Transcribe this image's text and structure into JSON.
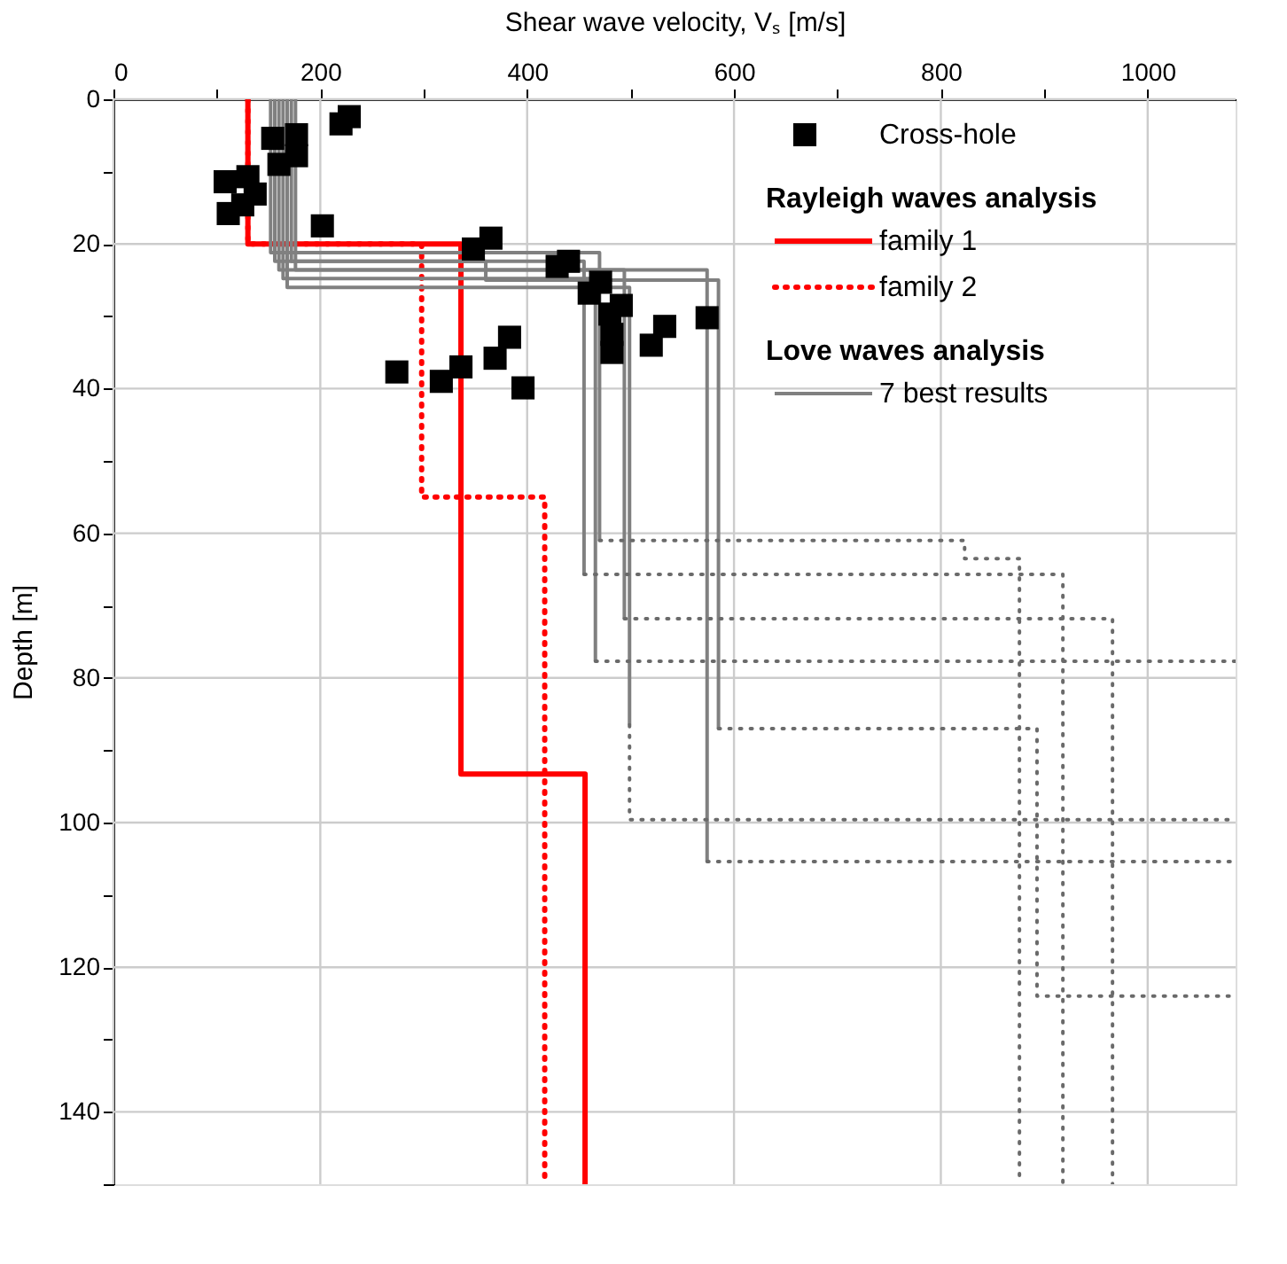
{
  "chart_data": {
    "type": "line",
    "xlabel": "Shear wave velocity, Vₛ [m/s]",
    "ylabel": "Depth [m]",
    "xlim": [
      0,
      1085
    ],
    "ylim": [
      150,
      0
    ],
    "xticks": [
      0,
      {
        "value": 100,
        "label": null
      },
      200,
      {
        "value": 300,
        "label": null
      },
      400,
      {
        "value": 500,
        "label": null
      },
      600,
      {
        "value": 700,
        "label": null
      },
      800,
      {
        "value": 900,
        "label": null
      },
      1000
    ],
    "yticks": [
      0,
      {
        "value": 10,
        "label": null
      },
      20,
      {
        "value": 30,
        "label": null
      },
      40,
      {
        "value": 50,
        "label": null
      },
      60,
      {
        "value": 70,
        "label": null
      },
      80,
      {
        "value": 90,
        "label": null
      },
      100,
      {
        "value": 110,
        "label": null
      },
      120,
      {
        "value": 130,
        "label": null
      },
      140,
      {
        "value": 150,
        "label": null
      }
    ],
    "grid": true,
    "legend": "top right",
    "annotations": [
      "Rayleigh waves analysis",
      "Love waves analysis"
    ],
    "series": [
      {
        "name": "Cross-hole",
        "type": "scatter",
        "marker": "square",
        "color": "#000000",
        "x": [
          228,
          220,
          154,
          177,
          177,
          160,
          108,
          130,
          137,
          111,
          125,
          202,
          348,
          365,
          429,
          440,
          460,
          471,
          491,
          480,
          482,
          482,
          520,
          533,
          574,
          274,
          317,
          336,
          369,
          383,
          396
        ],
        "values": [
          2.4,
          3.4,
          5.4,
          4.9,
          7.8,
          9,
          11.4,
          10.7,
          13.1,
          15.8,
          14.6,
          17.5,
          20.7,
          19.2,
          23.1,
          22.4,
          26.8,
          25.3,
          28.5,
          29.7,
          32.5,
          35,
          34,
          31.4,
          30.2,
          37.7,
          39,
          37,
          35.8,
          32.9,
          39.9
        ]
      },
      {
        "name": "family 1",
        "line_style": "solid",
        "color": "#ff0000",
        "x": [
          130,
          130,
          336,
          336,
          456,
          456
        ],
        "values": [
          0,
          20,
          20,
          93.3,
          93.3,
          150
        ]
      },
      {
        "name": "family 2",
        "line_style": "dotted",
        "color": "#ff0000",
        "x": [
          130,
          130,
          298,
          298,
          417,
          417
        ],
        "values": [
          0,
          20,
          20,
          55,
          55,
          150
        ]
      },
      {
        "name": "7 best results",
        "line_style": "solid",
        "color": "#808080",
        "x": [
          152,
          152,
          470,
          470
        ],
        "values": [
          0,
          21.2,
          21.2,
          61
        ]
      },
      {
        "line_style": "solid",
        "color": "#808080",
        "x": [
          156,
          156,
          455,
          455
        ],
        "values": [
          0,
          22.4,
          22.4,
          65.7
        ]
      },
      {
        "line_style": "solid",
        "color": "#808080",
        "x": [
          160,
          160,
          494,
          494
        ],
        "values": [
          0,
          23.6,
          23.6,
          71.8
        ]
      },
      {
        "line_style": "solid",
        "color": "#808080",
        "x": [
          164,
          164,
          466,
          466
        ],
        "values": [
          0,
          24.8,
          24.8,
          77.7
        ]
      },
      {
        "line_style": "solid",
        "color": "#808080",
        "x": [
          168,
          168,
          499,
          499
        ],
        "values": [
          0,
          26,
          26,
          86.5
        ]
      },
      {
        "line_style": "solid",
        "color": "#808080",
        "x": [
          172,
          172,
          360,
          360,
          585,
          585
        ],
        "values": [
          0,
          22.4,
          22.4,
          25,
          25,
          87
        ]
      },
      {
        "line_style": "solid",
        "color": "#808080",
        "x": [
          176,
          176,
          574,
          574
        ],
        "values": [
          0,
          23.6,
          23.6,
          105.4
        ]
      },
      {
        "line_style": "dotted",
        "color": "#6a6a6a",
        "x": [
          470,
          823,
          823,
          876,
          876
        ],
        "values": [
          61,
          61,
          63.5,
          63.5,
          150
        ]
      },
      {
        "line_style": "dotted",
        "color": "#6a6a6a",
        "x": [
          455,
          918,
          918
        ],
        "values": [
          65.7,
          65.7,
          150
        ]
      },
      {
        "line_style": "dotted",
        "color": "#6a6a6a",
        "x": [
          494,
          966,
          966
        ],
        "values": [
          71.8,
          71.8,
          150
        ]
      },
      {
        "line_style": "dotted",
        "color": "#6a6a6a",
        "x": [
          466,
          1085
        ],
        "values": [
          77.7,
          77.7
        ]
      },
      {
        "line_style": "dotted",
        "color": "#6a6a6a",
        "x": [
          499,
          499,
          1085
        ],
        "values": [
          86.5,
          99.6,
          99.6
        ]
      },
      {
        "line_style": "dotted",
        "color": "#6a6a6a",
        "x": [
          585,
          893,
          893,
          1085
        ],
        "values": [
          87,
          87,
          124,
          124
        ]
      },
      {
        "line_style": "dotted",
        "color": "#6a6a6a",
        "x": [
          574,
          1085
        ],
        "values": [
          105.4,
          105.4
        ]
      }
    ]
  }
}
